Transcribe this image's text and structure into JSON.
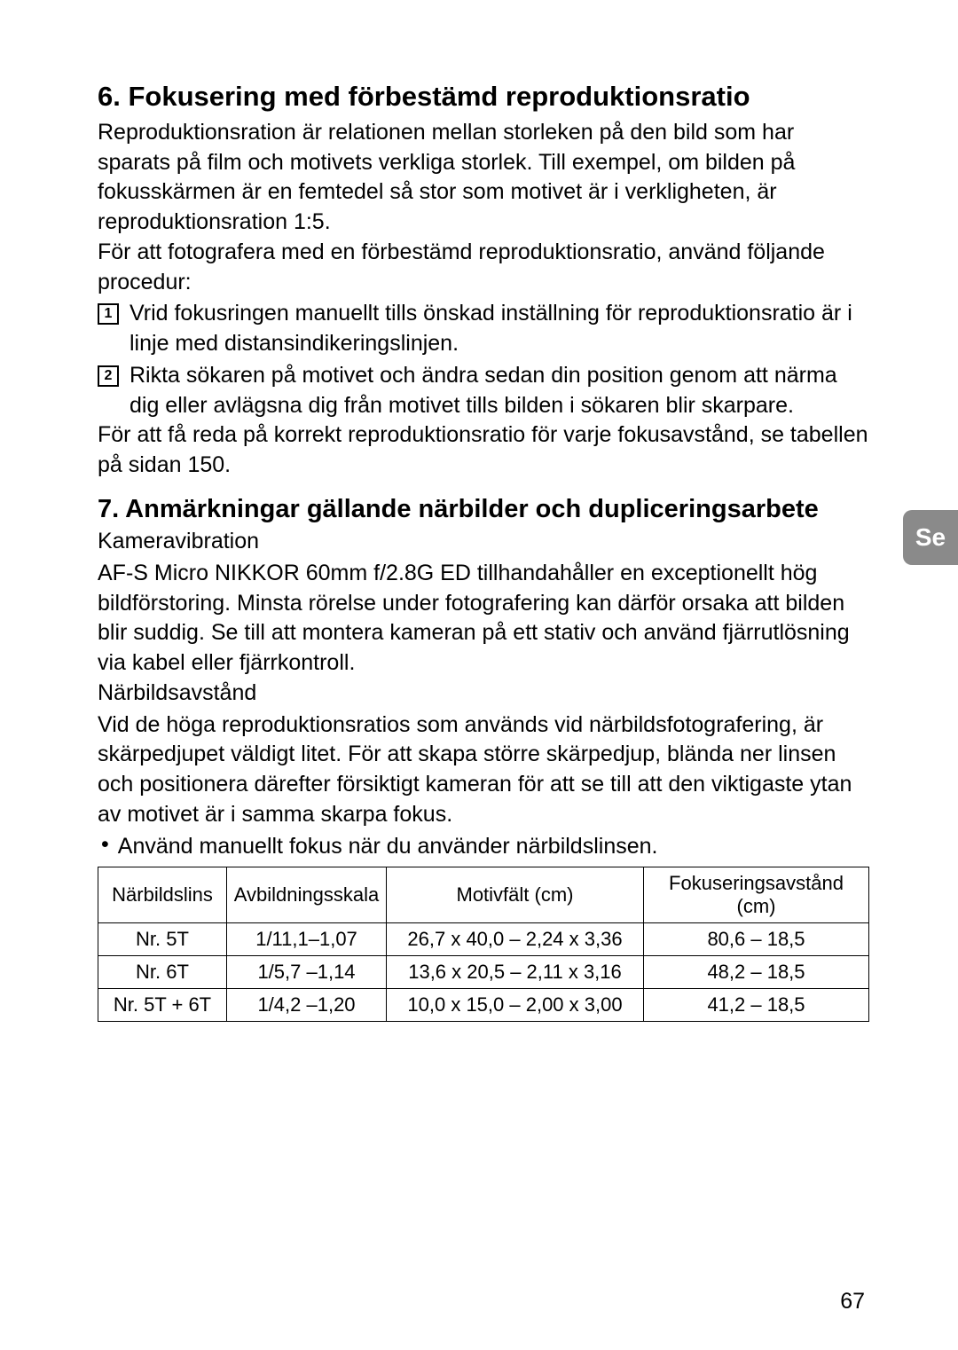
{
  "lang_tab": "Se",
  "page_number": "67",
  "section6": {
    "title": "6. Fokusering med förbestämd reproduktionsratio",
    "para1": "Reproduktionsration är relationen mellan storleken på den bild som har sparats på film och motivets verkliga storlek. Till exempel, om bilden på fokusskärmen är en femtedel så stor som motivet är i verkligheten, är reproduktionsration 1:5.",
    "para2": "För att fotografera med en förbestämd reproduktionsratio, använd följande procedur:",
    "step1_num": "1",
    "step1": "Vrid fokusringen manuellt tills önskad inställning för reproduktionsratio är i linje med distansindikeringslinjen.",
    "step2_num": "2",
    "step2": "Rikta sökaren på motivet och ändra sedan din position genom att närma dig eller avlägsna dig från motivet tills bilden i sökaren blir skarpare.",
    "para3": "För att få reda på korrekt reproduktionsratio för varje fokusavstånd, se tabellen på sidan 150."
  },
  "section7": {
    "title": "7. Anmärkningar gällande närbilder och dupliceringsarbete",
    "sub1": "Kameravibration",
    "para1": "AF-S Micro NIKKOR 60mm f/2.8G ED tillhandahåller en exceptionellt hög bildförstoring. Minsta rörelse under fotografering kan därför orsaka att bilden blir suddig. Se till att montera kameran på ett stativ och använd fjärrutlösning via kabel eller fjärrkontroll.",
    "sub2": "Närbildsavstånd",
    "para2": "Vid de höga reproduktionsratios som används vid närbildsfotografering, är skärpedjupet väldigt litet. För att skapa större skärpedjup, blända ner linsen och positionera därefter försiktigt kameran för att se till att den viktigaste ytan av motivet är i samma skarpa fokus.",
    "bullet1": "Använd manuellt fokus när du använder närbildslinsen."
  },
  "table": {
    "headers": [
      "Närbildslins",
      "Avbildningsskala",
      "Motivfält (cm)",
      "Fokuseringsavstånd (cm)"
    ],
    "rows": [
      [
        "Nr. 5T",
        "1/11,1–1,07",
        "26,7 x 40,0 – 2,24 x 3,36",
        "80,6 – 18,5"
      ],
      [
        "Nr. 6T",
        "1/5,7 –1,14",
        "13,6 x 20,5 – 2,11 x 3,16",
        "48,2 – 18,5"
      ],
      [
        "Nr. 5T + 6T",
        "1/4,2 –1,20",
        "10,0 x 15,0 – 2,00 x 3,00",
        "41,2 – 18,5"
      ]
    ]
  }
}
